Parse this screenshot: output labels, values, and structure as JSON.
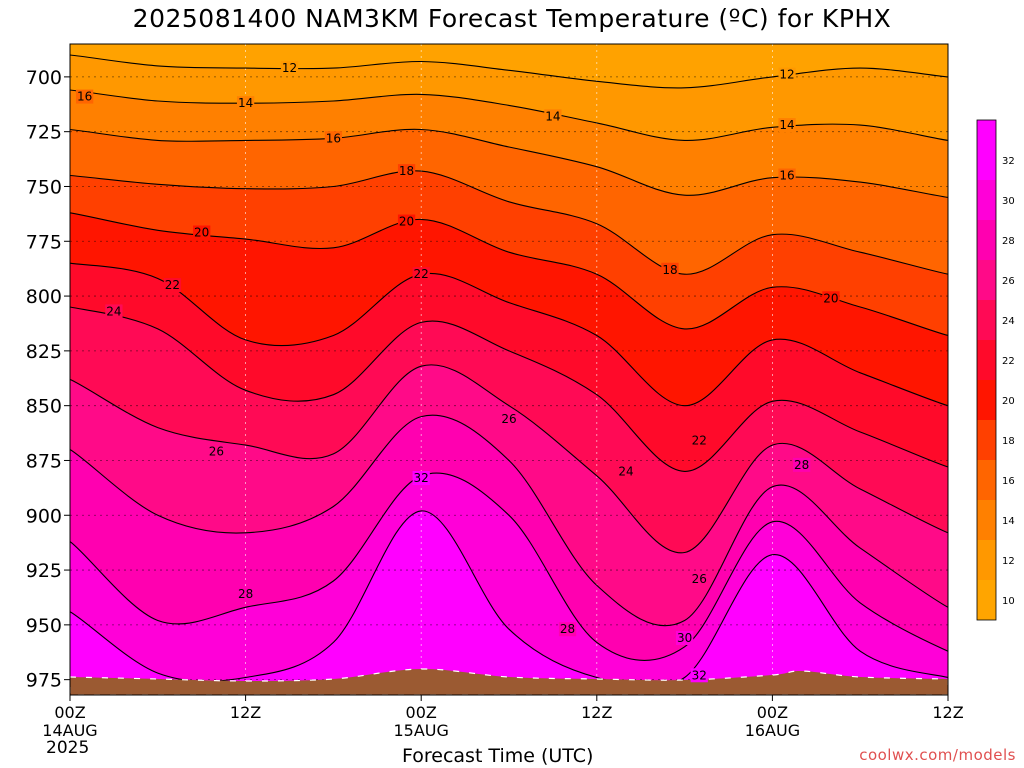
{
  "title": "2025081400 NAM3KM Forecast Temperature (ºC) for KPHX",
  "xlabel": "Forecast Time (UTC)",
  "brand": "coolwx.com/models",
  "start_year": "2025",
  "chart_data": {
    "type": "heatmap",
    "title": "2025081400 NAM3KM Forecast Temperature (ºC) for KPHX",
    "xlabel": "Forecast Time (UTC)",
    "ylabel": "",
    "x_unit": "hours since 2025-08-14 00Z",
    "xlim": [
      0,
      60
    ],
    "y_ticks": [
      700,
      725,
      750,
      775,
      800,
      825,
      850,
      875,
      900,
      925,
      950,
      975
    ],
    "ylim": [
      685,
      982
    ],
    "x_ticks": [
      {
        "hour": 0,
        "label": "00Z",
        "date": "14AUG"
      },
      {
        "hour": 12,
        "label": "12Z",
        "date": ""
      },
      {
        "hour": 24,
        "label": "00Z",
        "date": "15AUG"
      },
      {
        "hour": 36,
        "label": "12Z",
        "date": ""
      },
      {
        "hour": 48,
        "label": "00Z",
        "date": "16AUG"
      },
      {
        "hour": 60,
        "label": "12Z",
        "date": ""
      }
    ],
    "colorbar": {
      "levels": [
        10,
        12,
        14,
        16,
        18,
        20,
        22,
        24,
        26,
        28,
        30,
        32
      ],
      "labels": [
        "10",
        "12",
        "14",
        "16",
        "18",
        "20",
        "22",
        "24",
        "26",
        "28",
        "30",
        "32"
      ],
      "colors": [
        "#ffa500",
        "#ff9800",
        "#ff8000",
        "#ff6500",
        "#ff4000",
        "#ff1500",
        "#ff0a2a",
        "#ff0a55",
        "#ff0a88",
        "#ff00b0",
        "#ff00d8",
        "#ff00ff"
      ]
    },
    "terrain_color": "#9b5a32",
    "isotherms": [
      {
        "value": 12,
        "label": "12",
        "points": [
          [
            0,
            690
          ],
          [
            6,
            695
          ],
          [
            12,
            696
          ],
          [
            18,
            696
          ],
          [
            24,
            693
          ],
          [
            30,
            697
          ],
          [
            36,
            702
          ],
          [
            42,
            705
          ],
          [
            48,
            700
          ],
          [
            54,
            696
          ],
          [
            60,
            700
          ]
        ]
      },
      {
        "value": 14,
        "label": "14",
        "points": [
          [
            0,
            706
          ],
          [
            6,
            711
          ],
          [
            12,
            712
          ],
          [
            18,
            711
          ],
          [
            24,
            708
          ],
          [
            30,
            713
          ],
          [
            36,
            721
          ],
          [
            42,
            729
          ],
          [
            48,
            723
          ],
          [
            54,
            722
          ],
          [
            60,
            729
          ]
        ]
      },
      {
        "value": 16,
        "label": "16",
        "points": [
          [
            0,
            724
          ],
          [
            6,
            729
          ],
          [
            12,
            729
          ],
          [
            18,
            728
          ],
          [
            24,
            724
          ],
          [
            30,
            732
          ],
          [
            36,
            741
          ],
          [
            42,
            754
          ],
          [
            48,
            746
          ],
          [
            54,
            748
          ],
          [
            60,
            755
          ]
        ]
      },
      {
        "value": 18,
        "label": "18",
        "points": [
          [
            0,
            745
          ],
          [
            6,
            749
          ],
          [
            12,
            751
          ],
          [
            18,
            750
          ],
          [
            24,
            743
          ],
          [
            30,
            757
          ],
          [
            36,
            767
          ],
          [
            42,
            790
          ],
          [
            48,
            772
          ],
          [
            54,
            780
          ],
          [
            60,
            790
          ]
        ]
      },
      {
        "value": 20,
        "label": "20",
        "points": [
          [
            0,
            762
          ],
          [
            6,
            770
          ],
          [
            12,
            774
          ],
          [
            18,
            778
          ],
          [
            24,
            765
          ],
          [
            30,
            780
          ],
          [
            36,
            790
          ],
          [
            42,
            815
          ],
          [
            48,
            796
          ],
          [
            54,
            805
          ],
          [
            60,
            818
          ]
        ]
      },
      {
        "value": 22,
        "label": "22",
        "points": [
          [
            0,
            785
          ],
          [
            6,
            792
          ],
          [
            12,
            820
          ],
          [
            18,
            818
          ],
          [
            24,
            790
          ],
          [
            30,
            803
          ],
          [
            36,
            818
          ],
          [
            42,
            850
          ],
          [
            48,
            820
          ],
          [
            54,
            835
          ],
          [
            60,
            850
          ]
        ]
      },
      {
        "value": 24,
        "label": "24",
        "points": [
          [
            0,
            805
          ],
          [
            6,
            815
          ],
          [
            12,
            843
          ],
          [
            18,
            845
          ],
          [
            24,
            812
          ],
          [
            30,
            825
          ],
          [
            36,
            845
          ],
          [
            42,
            880
          ],
          [
            48,
            848
          ],
          [
            54,
            862
          ],
          [
            60,
            878
          ]
        ]
      },
      {
        "value": 26,
        "label": "26",
        "points": [
          [
            0,
            838
          ],
          [
            6,
            860
          ],
          [
            12,
            868
          ],
          [
            18,
            872
          ],
          [
            24,
            832
          ],
          [
            30,
            850
          ],
          [
            36,
            882
          ],
          [
            42,
            917
          ],
          [
            48,
            868
          ],
          [
            54,
            888
          ],
          [
            60,
            908
          ]
        ]
      },
      {
        "value": 28,
        "label": "28",
        "points": [
          [
            0,
            870
          ],
          [
            6,
            900
          ],
          [
            12,
            908
          ],
          [
            18,
            896
          ],
          [
            24,
            855
          ],
          [
            30,
            875
          ],
          [
            36,
            932
          ],
          [
            42,
            948
          ],
          [
            48,
            887
          ],
          [
            54,
            915
          ],
          [
            60,
            942
          ]
        ]
      },
      {
        "value": 30,
        "label": "30",
        "points": [
          [
            0,
            912
          ],
          [
            6,
            948
          ],
          [
            12,
            942
          ],
          [
            18,
            930
          ],
          [
            24,
            882
          ],
          [
            30,
            900
          ],
          [
            36,
            958
          ],
          [
            42,
            960
          ],
          [
            48,
            903
          ],
          [
            54,
            940
          ],
          [
            60,
            962
          ]
        ]
      },
      {
        "value": 32,
        "label": "32",
        "points": [
          [
            0,
            944
          ],
          [
            6,
            972
          ],
          [
            12,
            974
          ],
          [
            18,
            958
          ],
          [
            24,
            898
          ],
          [
            30,
            952
          ],
          [
            36,
            974
          ],
          [
            42,
            974
          ],
          [
            48,
            918
          ],
          [
            54,
            962
          ],
          [
            60,
            974
          ]
        ]
      }
    ],
    "contour_labels": [
      {
        "text": "12",
        "hour": 15,
        "p": 696
      },
      {
        "text": "12",
        "hour": 49,
        "p": 699
      },
      {
        "text": "14",
        "hour": 12,
        "p": 712
      },
      {
        "text": "14",
        "hour": 33,
        "p": 718
      },
      {
        "text": "14",
        "hour": 49,
        "p": 722
      },
      {
        "text": "16",
        "hour": 1,
        "p": 709
      },
      {
        "text": "16",
        "hour": 18,
        "p": 728
      },
      {
        "text": "16",
        "hour": 49,
        "p": 745
      },
      {
        "text": "18",
        "hour": 23,
        "p": 743
      },
      {
        "text": "18",
        "hour": 41,
        "p": 788
      },
      {
        "text": "20",
        "hour": 9,
        "p": 771
      },
      {
        "text": "20",
        "hour": 23,
        "p": 766
      },
      {
        "text": "20",
        "hour": 52,
        "p": 801
      },
      {
        "text": "22",
        "hour": 7,
        "p": 795
      },
      {
        "text": "22",
        "hour": 24,
        "p": 790
      },
      {
        "text": "22",
        "hour": 43,
        "p": 866
      },
      {
        "text": "24",
        "hour": 3,
        "p": 807
      },
      {
        "text": "24",
        "hour": 38,
        "p": 880
      },
      {
        "text": "26",
        "hour": 10,
        "p": 871
      },
      {
        "text": "26",
        "hour": 30,
        "p": 856
      },
      {
        "text": "26",
        "hour": 43,
        "p": 929
      },
      {
        "text": "28",
        "hour": 12,
        "p": 936
      },
      {
        "text": "28",
        "hour": 34,
        "p": 952
      },
      {
        "text": "28",
        "hour": 50,
        "p": 877
      },
      {
        "text": "30",
        "hour": 42,
        "p": 956
      },
      {
        "text": "32",
        "hour": 24,
        "p": 883
      },
      {
        "text": "32",
        "hour": 43,
        "p": 973
      }
    ]
  }
}
